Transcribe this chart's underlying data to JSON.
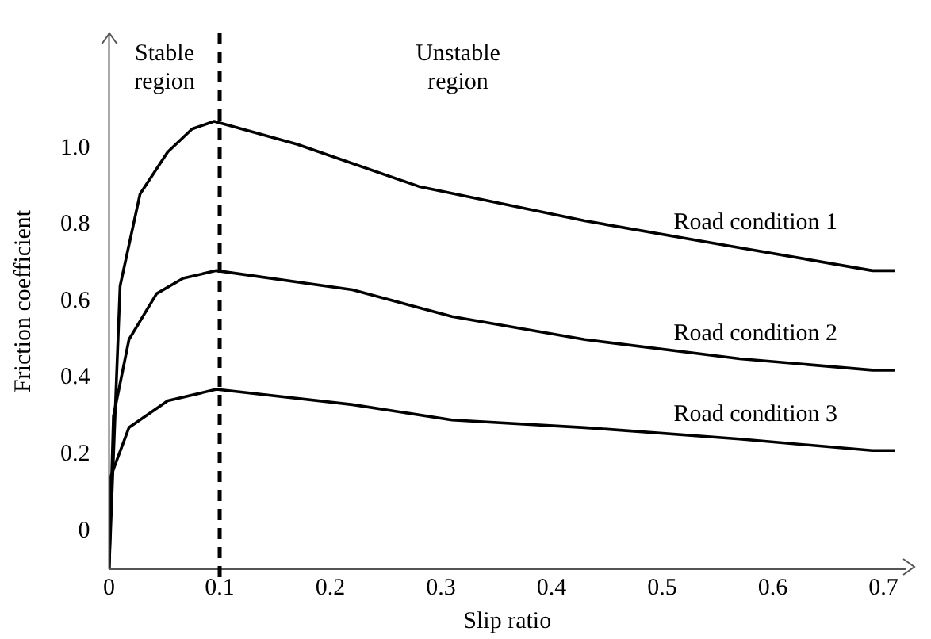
{
  "chart_data": {
    "type": "line",
    "xlabel": "Slip ratio",
    "ylabel": "Friction coefficient",
    "xlim": [
      0,
      0.72
    ],
    "ylim": [
      -0.1,
      1.3
    ],
    "xticks": [
      0,
      0.1,
      0.2,
      0.3,
      0.4,
      0.5,
      0.6,
      0.7
    ],
    "yticks": [
      0,
      0.2,
      0.4,
      0.6,
      0.8,
      {
        "value": 1,
        "label": "1.0"
      }
    ],
    "grid": false,
    "legend": false,
    "marker": "none",
    "line_style": "solid",
    "series": [
      {
        "name": "Road condition 1",
        "color": "#000000",
        "x": [
          0,
          0.01,
          0.028,
          0.053,
          0.075,
          0.095,
          0.17,
          0.28,
          0.43,
          0.57,
          0.69,
          0.71
        ],
        "values": [
          -0.1,
          0.64,
          0.88,
          0.99,
          1.05,
          1.07,
          1.01,
          0.9,
          0.81,
          0.74,
          0.68,
          0.68
        ]
      },
      {
        "name": "Road condition 2",
        "color": "#000000",
        "x": [
          0,
          0.004,
          0.018,
          0.043,
          0.067,
          0.097,
          0.22,
          0.31,
          0.43,
          0.57,
          0.69,
          0.71
        ],
        "values": [
          -0.1,
          0.3,
          0.5,
          0.62,
          0.66,
          0.68,
          0.63,
          0.56,
          0.5,
          0.45,
          0.42,
          0.42
        ]
      },
      {
        "name": "Road condition 3",
        "color": "#000000",
        "x": [
          0,
          0.0,
          0.018,
          0.053,
          0.097,
          0.22,
          0.31,
          0.43,
          0.57,
          0.69,
          0.71
        ],
        "values": [
          -0.1,
          0.13,
          0.27,
          0.34,
          0.37,
          0.33,
          0.29,
          0.27,
          0.24,
          0.21,
          0.21
        ]
      }
    ],
    "ref_lines": [
      {
        "axis": "x",
        "value": 0.1,
        "color": "#000000",
        "line_style": "dashed"
      }
    ],
    "annotations": [
      "Stable region",
      "Unstable region"
    ]
  }
}
